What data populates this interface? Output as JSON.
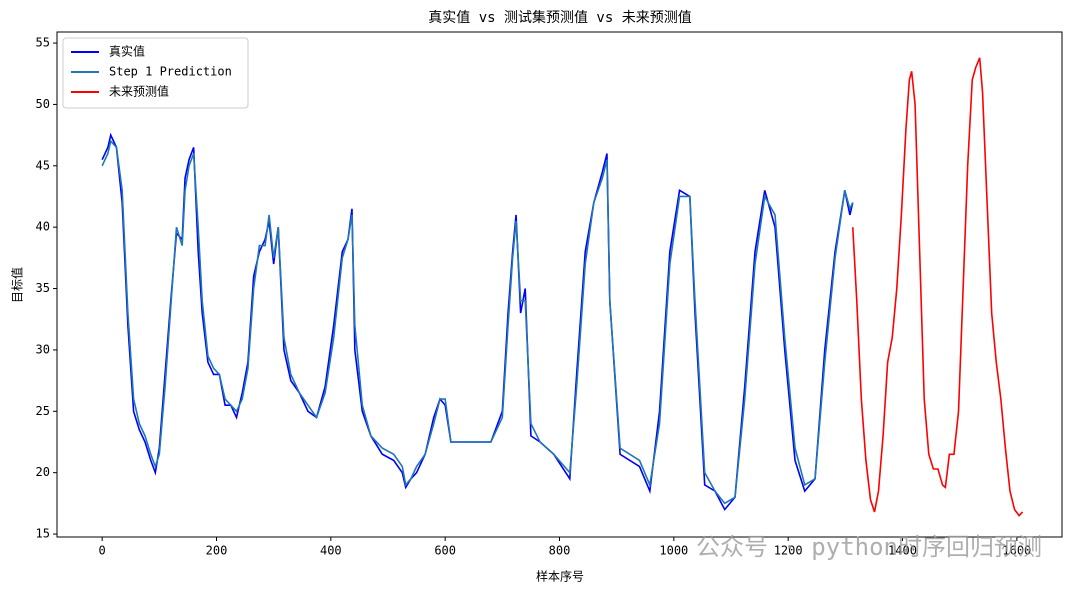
{
  "chart_data": {
    "type": "line",
    "title": "真实值 vs 测试集预测值 vs 未来预测值",
    "xlabel": "样本序号",
    "ylabel": "目标值",
    "x": [
      0,
      10,
      15,
      25,
      35,
      45,
      55,
      65,
      75,
      85,
      93,
      100,
      110,
      120,
      130,
      140,
      145,
      152,
      160,
      168,
      175,
      185,
      195,
      205,
      215,
      225,
      235,
      245,
      255,
      265,
      275,
      285,
      292,
      300,
      308,
      318,
      330,
      345,
      360,
      375,
      390,
      405,
      420,
      430,
      437,
      442,
      455,
      470,
      490,
      510,
      525,
      531,
      540,
      550,
      565,
      580,
      591,
      600,
      610,
      630,
      660,
      680,
      700,
      710,
      718,
      724,
      732,
      740,
      750,
      766,
      790,
      818,
      830,
      845,
      860,
      875,
      883,
      888,
      906,
      940,
      958,
      975,
      993,
      1010,
      1028,
      1037,
      1054,
      1072,
      1089,
      1107,
      1124,
      1142,
      1159,
      1177,
      1194,
      1212,
      1229,
      1247,
      1264,
      1282,
      1299,
      1308,
      1313
    ],
    "series": [
      {
        "name": "真实值",
        "color": "#0000ff",
        "values": [
          45.5,
          46.5,
          47.5,
          46.5,
          42,
          32,
          25,
          23.5,
          22.5,
          21,
          20,
          22,
          28,
          34,
          39.5,
          39,
          44,
          45.5,
          46.5,
          38,
          33,
          29,
          28,
          28,
          25.5,
          25.5,
          24.5,
          26.5,
          29,
          36,
          38,
          39,
          40.5,
          37,
          40,
          30,
          27.5,
          26.5,
          25,
          24.5,
          27,
          32,
          38,
          39,
          41.5,
          30,
          25,
          23,
          21.5,
          21,
          20,
          18.8,
          19.5,
          20,
          21.5,
          24.5,
          26,
          25.5,
          22.5,
          22.5,
          22.5,
          22.5,
          25,
          33,
          38,
          41,
          33,
          35,
          23,
          22.5,
          21.5,
          19.5,
          28,
          38,
          42,
          44.5,
          46,
          34,
          21.5,
          20.5,
          18.5,
          25,
          38,
          43,
          42.5,
          33,
          19,
          18.5,
          17,
          18,
          27,
          38,
          43,
          40,
          30,
          21,
          18.5,
          19.5,
          30,
          38,
          43,
          41,
          42
        ]
      },
      {
        "name": "Step 1 Prediction",
        "color": "#1f77b4",
        "values": [
          45,
          46,
          47,
          46.5,
          43,
          33,
          26,
          24,
          23,
          21.5,
          20.5,
          21.5,
          27,
          33.5,
          40,
          38.5,
          43,
          45,
          46,
          40,
          34,
          29.5,
          28.5,
          28,
          26,
          25.5,
          25,
          26,
          28.5,
          35,
          38.5,
          38.5,
          41,
          37.5,
          40,
          31,
          28,
          26.5,
          25.5,
          24.5,
          26.5,
          31,
          37.5,
          39,
          41,
          32,
          25.5,
          23,
          22,
          21.5,
          20.5,
          19,
          19.5,
          20.5,
          21.5,
          24,
          26,
          26,
          22.5,
          22.5,
          22.5,
          22.5,
          24.5,
          32,
          37.5,
          40.5,
          34,
          34,
          24,
          22.5,
          21.5,
          20,
          27,
          37,
          42,
          44,
          45.5,
          34,
          22,
          21,
          19,
          24,
          37,
          42.5,
          42.5,
          34,
          20,
          18.5,
          17.5,
          18,
          26,
          37,
          42.5,
          41,
          31,
          22,
          19,
          19.5,
          29,
          37.5,
          43,
          41.5,
          42
        ]
      },
      {
        "name": "未来预测值",
        "color": "#ff0000",
        "x": [
          1313,
          1320,
          1328,
          1336,
          1344,
          1351,
          1358,
          1366,
          1374,
          1382,
          1390,
          1398,
          1406,
          1412,
          1416,
          1422,
          1430,
          1438,
          1446,
          1454,
          1462,
          1470,
          1475,
          1482,
          1490,
          1498,
          1506,
          1514,
          1522,
          1528,
          1535,
          1540,
          1548,
          1556,
          1564,
          1572,
          1580,
          1588,
          1596,
          1604,
          1610
        ],
        "values": [
          40,
          34,
          26,
          21,
          17.8,
          16.8,
          18.5,
          23,
          29,
          31,
          35,
          41,
          48,
          52,
          52.7,
          50,
          38,
          26,
          21.5,
          20.3,
          20.3,
          19,
          18.8,
          21.5,
          21.5,
          25,
          35,
          45,
          52,
          53,
          53.8,
          51,
          42,
          33,
          29,
          26,
          22,
          18.5,
          17,
          16.5,
          16.8
        ]
      }
    ],
    "xlim": [
      -79,
      1679
    ],
    "ylim": [
      14.76,
      55.9
    ],
    "xticks": [
      0,
      200,
      400,
      600,
      800,
      1000,
      1200,
      1400,
      1600
    ],
    "yticks": [
      15,
      20,
      25,
      30,
      35,
      40,
      45,
      50,
      55
    ],
    "legend": "upper left"
  },
  "watermark": "公众号 · python时序回归预测"
}
